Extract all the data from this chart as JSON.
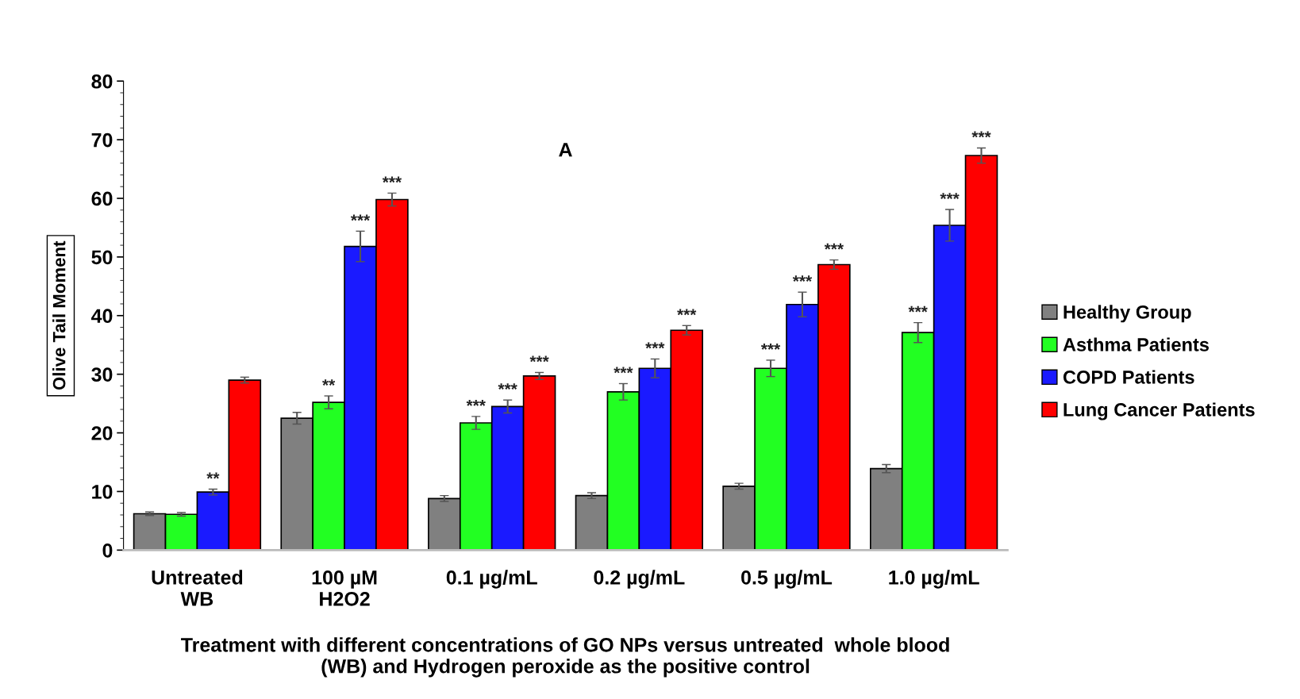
{
  "chart_data": {
    "type": "bar",
    "categories": [
      "Untreated\nWB",
      "100 µM\nH2O2",
      "0.1 µg/mL",
      "0.2 µg/mL",
      "0.5 µg/mL",
      "1.0 µg/mL"
    ],
    "series": [
      {
        "name": "Healthy Group",
        "color": "#808080",
        "values": [
          6.2,
          22.5,
          8.8,
          9.3,
          10.9,
          13.9
        ],
        "errors": [
          0.3,
          1.0,
          0.5,
          0.5,
          0.5,
          0.7
        ],
        "value_labels": [
          null,
          null,
          null,
          null,
          null,
          null
        ]
      },
      {
        "name": "Asthma Patients",
        "color": "#22ff22",
        "values": [
          6.1,
          25.2,
          21.7,
          27.0,
          31.0,
          37.1
        ],
        "errors": [
          0.3,
          1.1,
          1.1,
          1.4,
          1.4,
          1.7
        ],
        "value_labels": [
          null,
          "**",
          "***",
          "***",
          "***",
          "***"
        ]
      },
      {
        "name": "COPD Patients",
        "color": "#1a1aff",
        "values": [
          9.9,
          51.8,
          24.5,
          31.0,
          41.9,
          55.4
        ],
        "errors": [
          0.5,
          2.6,
          1.1,
          1.6,
          2.1,
          2.7
        ],
        "value_labels": [
          "**",
          "***",
          "***",
          "***",
          "***",
          "***"
        ]
      },
      {
        "name": "Lung Cancer Patients",
        "color": "#ff0000",
        "values": [
          29.0,
          59.8,
          29.7,
          37.5,
          48.7,
          67.3
        ],
        "errors": [
          0.5,
          1.1,
          0.6,
          0.8,
          0.8,
          1.3
        ],
        "value_labels": [
          null,
          "***",
          "***",
          "***",
          "***",
          "***"
        ]
      }
    ],
    "ylabel": "Olive Tail Moment",
    "xlabel": "Treatment with different concentrations of GO NPs versus untreated  whole blood\n(WB) and Hydrogen peroxide as the positive control",
    "annotations": [
      "A"
    ],
    "ylim": [
      0,
      80
    ],
    "yticks": [
      0,
      10,
      20,
      30,
      40,
      50,
      60,
      70,
      80
    ],
    "grid": false,
    "legend": "right"
  }
}
